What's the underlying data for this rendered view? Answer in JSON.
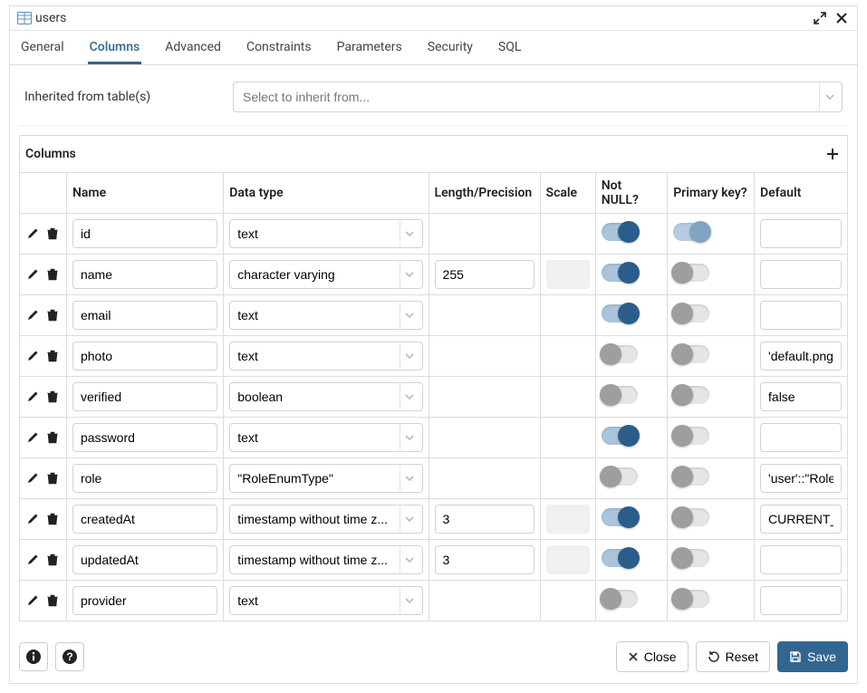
{
  "title": "users",
  "tabs": [
    "General",
    "Columns",
    "Advanced",
    "Constraints",
    "Parameters",
    "Security",
    "SQL"
  ],
  "activeTab": 1,
  "inherit": {
    "label": "Inherited from table(s)",
    "placeholder": "Select to inherit from..."
  },
  "columnsPanel": {
    "title": "Columns"
  },
  "headers": {
    "name": "Name",
    "dataType": "Data type",
    "length": "Length/Precision",
    "scale": "Scale",
    "notNull": "Not NULL?",
    "pk": "Primary key?",
    "def": "Default"
  },
  "rows": [
    {
      "name": "id",
      "dataType": "text",
      "length": "",
      "scaleDisabled": false,
      "notNull": true,
      "pk": true,
      "pkDisabled": true,
      "def": ""
    },
    {
      "name": "name",
      "dataType": "character varying",
      "length": "255",
      "scaleDisabled": true,
      "notNull": true,
      "pk": false,
      "pkDisabled": false,
      "def": ""
    },
    {
      "name": "email",
      "dataType": "text",
      "length": "",
      "scaleDisabled": false,
      "notNull": true,
      "pk": false,
      "pkDisabled": false,
      "def": ""
    },
    {
      "name": "photo",
      "dataType": "text",
      "length": "",
      "scaleDisabled": false,
      "notNull": false,
      "pk": false,
      "pkDisabled": false,
      "def": "'default.png'"
    },
    {
      "name": "verified",
      "dataType": "boolean",
      "length": "",
      "scaleDisabled": false,
      "notNull": false,
      "pk": false,
      "pkDisabled": false,
      "def": "false"
    },
    {
      "name": "password",
      "dataType": "text",
      "length": "",
      "scaleDisabled": false,
      "notNull": true,
      "pk": false,
      "pkDisabled": false,
      "def": ""
    },
    {
      "name": "role",
      "dataType": "\"RoleEnumType\"",
      "length": "",
      "scaleDisabled": false,
      "notNull": false,
      "pk": false,
      "pkDisabled": false,
      "def": "'user'::\"RoleEnumType\""
    },
    {
      "name": "createdAt",
      "dataType": "timestamp without time z...",
      "length": "3",
      "scaleDisabled": true,
      "notNull": true,
      "pk": false,
      "pkDisabled": false,
      "def": "CURRENT_TIMESTAMP"
    },
    {
      "name": "updatedAt",
      "dataType": "timestamp without time z...",
      "length": "3",
      "scaleDisabled": true,
      "notNull": true,
      "pk": false,
      "pkDisabled": false,
      "def": ""
    },
    {
      "name": "provider",
      "dataType": "text",
      "length": "",
      "scaleDisabled": false,
      "notNull": false,
      "pk": false,
      "pkDisabled": false,
      "def": ""
    }
  ],
  "footer": {
    "close": "Close",
    "reset": "Reset",
    "save": "Save"
  },
  "colors": {
    "accent": "#326690",
    "toggleOnTrack": "#a9c4db",
    "toggleOnKnob": "#2b5d8b",
    "toggleOffKnob": "#9e9e9e",
    "border": "#dcdcdc"
  }
}
